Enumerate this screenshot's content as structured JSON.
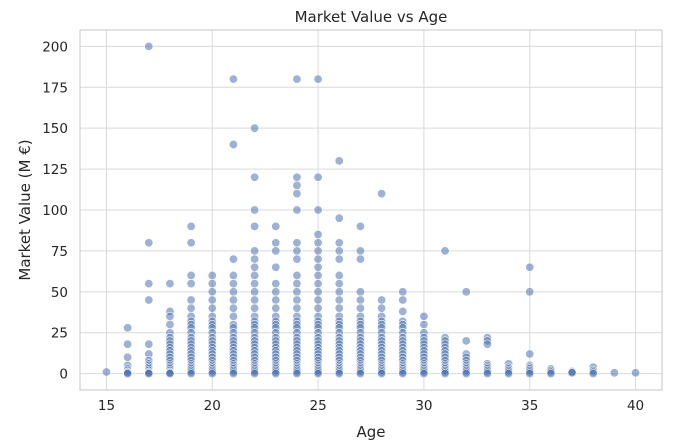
{
  "chart_data": {
    "type": "scatter",
    "title": "Market Value vs Age",
    "xlabel": "Age",
    "ylabel": "Market Value (M €)",
    "xlim": [
      13.75,
      41.25
    ],
    "ylim": [
      -10,
      210
    ],
    "xticks": [
      15,
      20,
      25,
      30,
      35,
      40
    ],
    "yticks": [
      0,
      25,
      50,
      75,
      100,
      125,
      150,
      175,
      200
    ],
    "grid": true,
    "legend": "none",
    "point_color": "#4c72b0",
    "point_opacity": 0.55,
    "points": [
      [
        15,
        1
      ],
      [
        16,
        28
      ],
      [
        16,
        18
      ],
      [
        16,
        10
      ],
      [
        16,
        5
      ],
      [
        16,
        3
      ],
      [
        16,
        2
      ],
      [
        16,
        1
      ],
      [
        16,
        0.5
      ],
      [
        16,
        0
      ],
      [
        17,
        200
      ],
      [
        17,
        80
      ],
      [
        17,
        55
      ],
      [
        17,
        45
      ],
      [
        17,
        18
      ],
      [
        17,
        12
      ],
      [
        17,
        8
      ],
      [
        17,
        6
      ],
      [
        17,
        5
      ],
      [
        17,
        4
      ],
      [
        17,
        3
      ],
      [
        17,
        2
      ],
      [
        17,
        1
      ],
      [
        17,
        0.5
      ],
      [
        17,
        0
      ],
      [
        18,
        55
      ],
      [
        18,
        38
      ],
      [
        18,
        35
      ],
      [
        18,
        30
      ],
      [
        18,
        25
      ],
      [
        18,
        22
      ],
      [
        18,
        20
      ],
      [
        18,
        18
      ],
      [
        18,
        16
      ],
      [
        18,
        14
      ],
      [
        18,
        12
      ],
      [
        18,
        10
      ],
      [
        18,
        8
      ],
      [
        18,
        6
      ],
      [
        18,
        5
      ],
      [
        18,
        4
      ],
      [
        18,
        3
      ],
      [
        18,
        2
      ],
      [
        18,
        1
      ],
      [
        18,
        0.5
      ],
      [
        18,
        0
      ],
      [
        19,
        90
      ],
      [
        19,
        80
      ],
      [
        19,
        60
      ],
      [
        19,
        55
      ],
      [
        19,
        45
      ],
      [
        19,
        40
      ],
      [
        19,
        35
      ],
      [
        19,
        32
      ],
      [
        19,
        30
      ],
      [
        19,
        28
      ],
      [
        19,
        25
      ],
      [
        19,
        22
      ],
      [
        19,
        20
      ],
      [
        19,
        18
      ],
      [
        19,
        16
      ],
      [
        19,
        14
      ],
      [
        19,
        12
      ],
      [
        19,
        10
      ],
      [
        19,
        8
      ],
      [
        19,
        6
      ],
      [
        19,
        5
      ],
      [
        19,
        4
      ],
      [
        19,
        3
      ],
      [
        19,
        2
      ],
      [
        19,
        1
      ],
      [
        19,
        0
      ],
      [
        20,
        60
      ],
      [
        20,
        55
      ],
      [
        20,
        50
      ],
      [
        20,
        45
      ],
      [
        20,
        40
      ],
      [
        20,
        35
      ],
      [
        20,
        32
      ],
      [
        20,
        30
      ],
      [
        20,
        28
      ],
      [
        20,
        25
      ],
      [
        20,
        22
      ],
      [
        20,
        20
      ],
      [
        20,
        18
      ],
      [
        20,
        16
      ],
      [
        20,
        14
      ],
      [
        20,
        12
      ],
      [
        20,
        10
      ],
      [
        20,
        8
      ],
      [
        20,
        6
      ],
      [
        20,
        5
      ],
      [
        20,
        4
      ],
      [
        20,
        3
      ],
      [
        20,
        2
      ],
      [
        20,
        1
      ],
      [
        20,
        0
      ],
      [
        21,
        180
      ],
      [
        21,
        140
      ],
      [
        21,
        70
      ],
      [
        21,
        60
      ],
      [
        21,
        55
      ],
      [
        21,
        50
      ],
      [
        21,
        45
      ],
      [
        21,
        40
      ],
      [
        21,
        35
      ],
      [
        21,
        30
      ],
      [
        21,
        28
      ],
      [
        21,
        25
      ],
      [
        21,
        22
      ],
      [
        21,
        20
      ],
      [
        21,
        18
      ],
      [
        21,
        16
      ],
      [
        21,
        14
      ],
      [
        21,
        12
      ],
      [
        21,
        10
      ],
      [
        21,
        8
      ],
      [
        21,
        6
      ],
      [
        21,
        5
      ],
      [
        21,
        4
      ],
      [
        21,
        3
      ],
      [
        21,
        2
      ],
      [
        21,
        1
      ],
      [
        21,
        0
      ],
      [
        22,
        150
      ],
      [
        22,
        120
      ],
      [
        22,
        100
      ],
      [
        22,
        90
      ],
      [
        22,
        75
      ],
      [
        22,
        70
      ],
      [
        22,
        65
      ],
      [
        22,
        60
      ],
      [
        22,
        55
      ],
      [
        22,
        50
      ],
      [
        22,
        45
      ],
      [
        22,
        40
      ],
      [
        22,
        35
      ],
      [
        22,
        32
      ],
      [
        22,
        30
      ],
      [
        22,
        28
      ],
      [
        22,
        25
      ],
      [
        22,
        22
      ],
      [
        22,
        20
      ],
      [
        22,
        18
      ],
      [
        22,
        16
      ],
      [
        22,
        14
      ],
      [
        22,
        12
      ],
      [
        22,
        10
      ],
      [
        22,
        8
      ],
      [
        22,
        6
      ],
      [
        22,
        5
      ],
      [
        22,
        4
      ],
      [
        22,
        3
      ],
      [
        22,
        2
      ],
      [
        22,
        1
      ],
      [
        22,
        0
      ],
      [
        23,
        90
      ],
      [
        23,
        80
      ],
      [
        23,
        75
      ],
      [
        23,
        65
      ],
      [
        23,
        55
      ],
      [
        23,
        50
      ],
      [
        23,
        45
      ],
      [
        23,
        40
      ],
      [
        23,
        35
      ],
      [
        23,
        32
      ],
      [
        23,
        30
      ],
      [
        23,
        28
      ],
      [
        23,
        25
      ],
      [
        23,
        22
      ],
      [
        23,
        20
      ],
      [
        23,
        18
      ],
      [
        23,
        16
      ],
      [
        23,
        14
      ],
      [
        23,
        12
      ],
      [
        23,
        10
      ],
      [
        23,
        8
      ],
      [
        23,
        6
      ],
      [
        23,
        5
      ],
      [
        23,
        4
      ],
      [
        23,
        3
      ],
      [
        23,
        2
      ],
      [
        23,
        1
      ],
      [
        23,
        0
      ],
      [
        24,
        180
      ],
      [
        24,
        120
      ],
      [
        24,
        115
      ],
      [
        24,
        110
      ],
      [
        24,
        100
      ],
      [
        24,
        80
      ],
      [
        24,
        75
      ],
      [
        24,
        70
      ],
      [
        24,
        60
      ],
      [
        24,
        55
      ],
      [
        24,
        50
      ],
      [
        24,
        45
      ],
      [
        24,
        40
      ],
      [
        24,
        35
      ],
      [
        24,
        32
      ],
      [
        24,
        30
      ],
      [
        24,
        28
      ],
      [
        24,
        25
      ],
      [
        24,
        22
      ],
      [
        24,
        20
      ],
      [
        24,
        18
      ],
      [
        24,
        16
      ],
      [
        24,
        14
      ],
      [
        24,
        12
      ],
      [
        24,
        10
      ],
      [
        24,
        8
      ],
      [
        24,
        6
      ],
      [
        24,
        5
      ],
      [
        24,
        4
      ],
      [
        24,
        3
      ],
      [
        24,
        2
      ],
      [
        24,
        1
      ],
      [
        24,
        0
      ],
      [
        25,
        180
      ],
      [
        25,
        120
      ],
      [
        25,
        100
      ],
      [
        25,
        85
      ],
      [
        25,
        80
      ],
      [
        25,
        75
      ],
      [
        25,
        70
      ],
      [
        25,
        65
      ],
      [
        25,
        60
      ],
      [
        25,
        55
      ],
      [
        25,
        50
      ],
      [
        25,
        45
      ],
      [
        25,
        40
      ],
      [
        25,
        35
      ],
      [
        25,
        32
      ],
      [
        25,
        30
      ],
      [
        25,
        28
      ],
      [
        25,
        25
      ],
      [
        25,
        22
      ],
      [
        25,
        20
      ],
      [
        25,
        18
      ],
      [
        25,
        16
      ],
      [
        25,
        14
      ],
      [
        25,
        12
      ],
      [
        25,
        10
      ],
      [
        25,
        8
      ],
      [
        25,
        6
      ],
      [
        25,
        5
      ],
      [
        25,
        4
      ],
      [
        25,
        3
      ],
      [
        25,
        2
      ],
      [
        25,
        1
      ],
      [
        25,
        0
      ],
      [
        26,
        130
      ],
      [
        26,
        95
      ],
      [
        26,
        80
      ],
      [
        26,
        75
      ],
      [
        26,
        70
      ],
      [
        26,
        60
      ],
      [
        26,
        55
      ],
      [
        26,
        50
      ],
      [
        26,
        45
      ],
      [
        26,
        40
      ],
      [
        26,
        35
      ],
      [
        26,
        32
      ],
      [
        26,
        30
      ],
      [
        26,
        28
      ],
      [
        26,
        25
      ],
      [
        26,
        22
      ],
      [
        26,
        20
      ],
      [
        26,
        18
      ],
      [
        26,
        16
      ],
      [
        26,
        14
      ],
      [
        26,
        12
      ],
      [
        26,
        10
      ],
      [
        26,
        8
      ],
      [
        26,
        6
      ],
      [
        26,
        5
      ],
      [
        26,
        4
      ],
      [
        26,
        3
      ],
      [
        26,
        2
      ],
      [
        26,
        1
      ],
      [
        26,
        0
      ],
      [
        27,
        90
      ],
      [
        27,
        75
      ],
      [
        27,
        70
      ],
      [
        27,
        50
      ],
      [
        27,
        45
      ],
      [
        27,
        40
      ],
      [
        27,
        35
      ],
      [
        27,
        32
      ],
      [
        27,
        30
      ],
      [
        27,
        28
      ],
      [
        27,
        25
      ],
      [
        27,
        22
      ],
      [
        27,
        20
      ],
      [
        27,
        18
      ],
      [
        27,
        16
      ],
      [
        27,
        14
      ],
      [
        27,
        12
      ],
      [
        27,
        10
      ],
      [
        27,
        8
      ],
      [
        27,
        6
      ],
      [
        27,
        5
      ],
      [
        27,
        4
      ],
      [
        27,
        3
      ],
      [
        27,
        2
      ],
      [
        27,
        1
      ],
      [
        27,
        0
      ],
      [
        28,
        110
      ],
      [
        28,
        45
      ],
      [
        28,
        40
      ],
      [
        28,
        35
      ],
      [
        28,
        32
      ],
      [
        28,
        30
      ],
      [
        28,
        28
      ],
      [
        28,
        25
      ],
      [
        28,
        22
      ],
      [
        28,
        20
      ],
      [
        28,
        18
      ],
      [
        28,
        16
      ],
      [
        28,
        14
      ],
      [
        28,
        12
      ],
      [
        28,
        10
      ],
      [
        28,
        8
      ],
      [
        28,
        6
      ],
      [
        28,
        5
      ],
      [
        28,
        4
      ],
      [
        28,
        3
      ],
      [
        28,
        2
      ],
      [
        28,
        1
      ],
      [
        28,
        0
      ],
      [
        29,
        50
      ],
      [
        29,
        45
      ],
      [
        29,
        38
      ],
      [
        29,
        32
      ],
      [
        29,
        30
      ],
      [
        29,
        28
      ],
      [
        29,
        25
      ],
      [
        29,
        22
      ],
      [
        29,
        20
      ],
      [
        29,
        18
      ],
      [
        29,
        16
      ],
      [
        29,
        14
      ],
      [
        29,
        12
      ],
      [
        29,
        10
      ],
      [
        29,
        8
      ],
      [
        29,
        6
      ],
      [
        29,
        5
      ],
      [
        29,
        4
      ],
      [
        29,
        3
      ],
      [
        29,
        2
      ],
      [
        29,
        1
      ],
      [
        29,
        0
      ],
      [
        30,
        35
      ],
      [
        30,
        30
      ],
      [
        30,
        25
      ],
      [
        30,
        22
      ],
      [
        30,
        20
      ],
      [
        30,
        18
      ],
      [
        30,
        16
      ],
      [
        30,
        14
      ],
      [
        30,
        12
      ],
      [
        30,
        10
      ],
      [
        30,
        8
      ],
      [
        30,
        6
      ],
      [
        30,
        5
      ],
      [
        30,
        4
      ],
      [
        30,
        3
      ],
      [
        30,
        2
      ],
      [
        30,
        1
      ],
      [
        30,
        0
      ],
      [
        31,
        75
      ],
      [
        31,
        22
      ],
      [
        31,
        20
      ],
      [
        31,
        18
      ],
      [
        31,
        16
      ],
      [
        31,
        14
      ],
      [
        31,
        12
      ],
      [
        31,
        10
      ],
      [
        31,
        8
      ],
      [
        31,
        6
      ],
      [
        31,
        5
      ],
      [
        31,
        4
      ],
      [
        31,
        3
      ],
      [
        31,
        2
      ],
      [
        31,
        1
      ],
      [
        31,
        0
      ],
      [
        32,
        50
      ],
      [
        32,
        20
      ],
      [
        32,
        12
      ],
      [
        32,
        10
      ],
      [
        32,
        8
      ],
      [
        32,
        6
      ],
      [
        32,
        5
      ],
      [
        32,
        4
      ],
      [
        32,
        3
      ],
      [
        32,
        2
      ],
      [
        32,
        1
      ],
      [
        32,
        0
      ],
      [
        33,
        22
      ],
      [
        33,
        20
      ],
      [
        33,
        18
      ],
      [
        33,
        6
      ],
      [
        33,
        5
      ],
      [
        33,
        4
      ],
      [
        33,
        3
      ],
      [
        33,
        2
      ],
      [
        33,
        1
      ],
      [
        33,
        0
      ],
      [
        34,
        6
      ],
      [
        34,
        4
      ],
      [
        34,
        3
      ],
      [
        34,
        2
      ],
      [
        34,
        1
      ],
      [
        34,
        0
      ],
      [
        35,
        65
      ],
      [
        35,
        50
      ],
      [
        35,
        12
      ],
      [
        35,
        5
      ],
      [
        35,
        4
      ],
      [
        35,
        3
      ],
      [
        35,
        2
      ],
      [
        35,
        1
      ],
      [
        35,
        0
      ],
      [
        36,
        3
      ],
      [
        36,
        2
      ],
      [
        36,
        1
      ],
      [
        36,
        0
      ],
      [
        37,
        1.5
      ],
      [
        37,
        1
      ],
      [
        37,
        0.5
      ],
      [
        38,
        4
      ],
      [
        38,
        2
      ],
      [
        38,
        1
      ],
      [
        38,
        0
      ],
      [
        39,
        0.5
      ],
      [
        40,
        0.5
      ]
    ]
  }
}
